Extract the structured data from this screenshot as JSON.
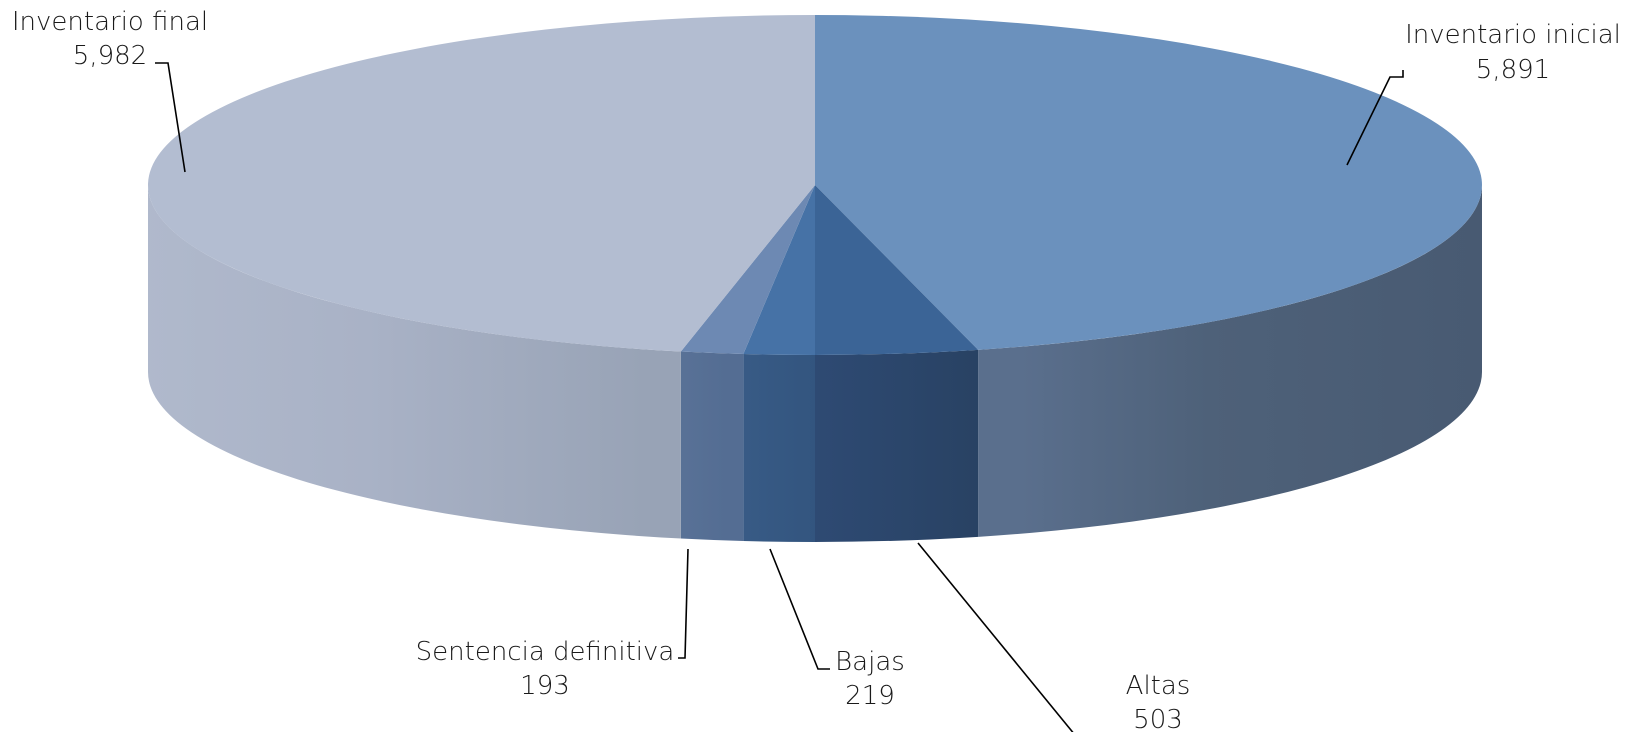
{
  "chart_data": {
    "type": "pie",
    "style": "3d",
    "title": "",
    "slices": [
      {
        "label": "Inventario inicial",
        "value": 5891,
        "display": "5,891",
        "color": "#6b91bd"
      },
      {
        "label": "Altas",
        "value": 503,
        "display": "503",
        "color": "#3b6496"
      },
      {
        "label": "Bajas",
        "value": 219,
        "display": "219",
        "color": "#4672a6"
      },
      {
        "label": "Sentencia definitiva",
        "value": 193,
        "display": "193",
        "color": "#6d89b3"
      },
      {
        "label": "Inventario final",
        "value": 5982,
        "display": "5,982",
        "color": "#b3bdd1"
      }
    ]
  }
}
